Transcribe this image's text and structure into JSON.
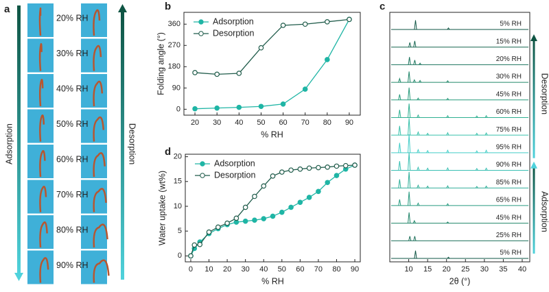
{
  "panel_a": {
    "label": "a",
    "rows": [
      "20% RH",
      "30% RH",
      "40% RH",
      "50% RH",
      "60% RH",
      "70% RH",
      "80% RH",
      "90% RH"
    ],
    "left_arrow": "Adsorption",
    "right_arrow": "Desorption"
  },
  "chart_data": [
    {
      "type": "line",
      "label": "b",
      "ylabel": "Folding angle (°)",
      "xlabel": "% RH",
      "x": [
        20,
        30,
        40,
        50,
        60,
        70,
        80,
        90
      ],
      "series": [
        {
          "name": "Adsorption",
          "color": "#1fb5a5",
          "marker": "filled",
          "values": [
            2,
            5,
            8,
            12,
            22,
            85,
            210,
            380
          ]
        },
        {
          "name": "Desorption",
          "color": "#1f5b4a",
          "marker": "open",
          "values": [
            155,
            148,
            152,
            260,
            355,
            360,
            370,
            380
          ]
        }
      ],
      "xlim": [
        15,
        95
      ],
      "xticks": [
        20,
        30,
        40,
        50,
        60,
        70,
        80,
        90
      ],
      "ylim": [
        -25,
        410
      ],
      "yticks": [
        0,
        90,
        180,
        270,
        360
      ],
      "legend": "top-left"
    },
    {
      "type": "line",
      "label": "d",
      "ylabel": "Water uptake (wt%)",
      "xlabel": "% RH",
      "x": [
        0,
        2,
        5,
        10,
        15,
        20,
        25,
        30,
        35,
        40,
        45,
        50,
        55,
        60,
        65,
        70,
        75,
        80,
        85,
        90
      ],
      "series": [
        {
          "name": "Adsorption",
          "color": "#1fb5a5",
          "marker": "filled",
          "values": [
            0,
            1.5,
            2.8,
            4.5,
            5.5,
            6.3,
            6.8,
            7.0,
            7.2,
            7.5,
            8.0,
            8.8,
            9.8,
            10.8,
            11.8,
            13.0,
            14.8,
            16.2,
            17.5,
            18.3
          ]
        },
        {
          "name": "Desorption",
          "color": "#1f5b4a",
          "marker": "open",
          "values": [
            0,
            2.2,
            2.3,
            4.8,
            5.8,
            6.6,
            7.6,
            9.8,
            12.0,
            14.1,
            16.1,
            16.9,
            17.3,
            17.5,
            17.7,
            17.8,
            17.9,
            18.1,
            18.2,
            18.3
          ]
        }
      ],
      "xlim": [
        -3,
        93
      ],
      "xticks": [
        0,
        10,
        20,
        30,
        40,
        50,
        60,
        70,
        80,
        90
      ],
      "ylim": [
        -1.2,
        20.5
      ],
      "yticks": [
        0,
        5,
        10,
        15,
        20
      ],
      "legend": "top-left"
    },
    {
      "type": "xrd",
      "label": "c",
      "xlabel": "2θ (°)",
      "annotations": [
        "Desorption",
        "Adsorption"
      ],
      "xlim": [
        5,
        42
      ],
      "xticks": [
        10,
        15,
        20,
        25,
        30,
        35,
        40
      ],
      "series": [
        {
          "name": "5% RH",
          "color": "#0e5443",
          "x": [
            11.8,
            20.5
          ],
          "values": [
            30,
            5
          ]
        },
        {
          "name": "15% RH",
          "color": "#14634f",
          "x": [
            10.3,
            11.6
          ],
          "values": [
            15,
            20
          ]
        },
        {
          "name": "20% RH",
          "color": "#1a735c",
          "x": [
            10.2,
            11.6,
            13
          ],
          "values": [
            25,
            15,
            5
          ]
        },
        {
          "name": "30% RH",
          "color": "#208669",
          "x": [
            7.6,
            10.1,
            11.5,
            13,
            20.3
          ],
          "values": [
            12,
            35,
            8,
            6,
            5
          ]
        },
        {
          "name": "45% RH",
          "color": "#269a7a",
          "x": [
            7.6,
            10.1,
            12.5,
            20.3
          ],
          "values": [
            18,
            40,
            6,
            5
          ]
        },
        {
          "name": "60% RH",
          "color": "#2daf90",
          "x": [
            7.6,
            10.1,
            12.5,
            20.3,
            28,
            30.5
          ],
          "values": [
            25,
            45,
            8,
            6,
            5,
            6
          ]
        },
        {
          "name": "75% RH",
          "color": "#36c0aa",
          "x": [
            7.6,
            10.1,
            12.5,
            15,
            20.3,
            28,
            30.5
          ],
          "values": [
            30,
            55,
            10,
            6,
            8,
            6,
            7
          ]
        },
        {
          "name": "95% RH",
          "color": "#42cdc8",
          "x": [
            7.6,
            10.1,
            12.5,
            15,
            20.3,
            28,
            30.5
          ],
          "values": [
            32,
            60,
            10,
            7,
            8,
            6,
            8
          ]
        },
        {
          "name": "90% RH",
          "color": "#38bfb2",
          "x": [
            7.6,
            10.1,
            12.5,
            15,
            20.3,
            28,
            30.5
          ],
          "values": [
            30,
            58,
            10,
            7,
            8,
            6,
            7
          ]
        },
        {
          "name": "85% RH",
          "color": "#2eae98",
          "x": [
            7.6,
            10.1,
            12.5,
            15,
            20.3,
            28,
            30.5
          ],
          "values": [
            28,
            52,
            9,
            6,
            7,
            5,
            6
          ]
        },
        {
          "name": "65% RH",
          "color": "#269a7f",
          "x": [
            7.6,
            10.1,
            12.5,
            20.3
          ],
          "values": [
            20,
            45,
            8,
            6
          ]
        },
        {
          "name": "45% RH",
          "color": "#1f8468",
          "x": [
            10.1,
            11.5,
            20.3
          ],
          "values": [
            35,
            8,
            4
          ]
        },
        {
          "name": "25% RH",
          "color": "#176c55",
          "x": [
            10.3,
            11.6
          ],
          "values": [
            15,
            15
          ]
        },
        {
          "name": "5% RH",
          "color": "#0e5443",
          "x": [
            11.8,
            20.5
          ],
          "values": [
            25,
            4
          ]
        }
      ]
    }
  ]
}
